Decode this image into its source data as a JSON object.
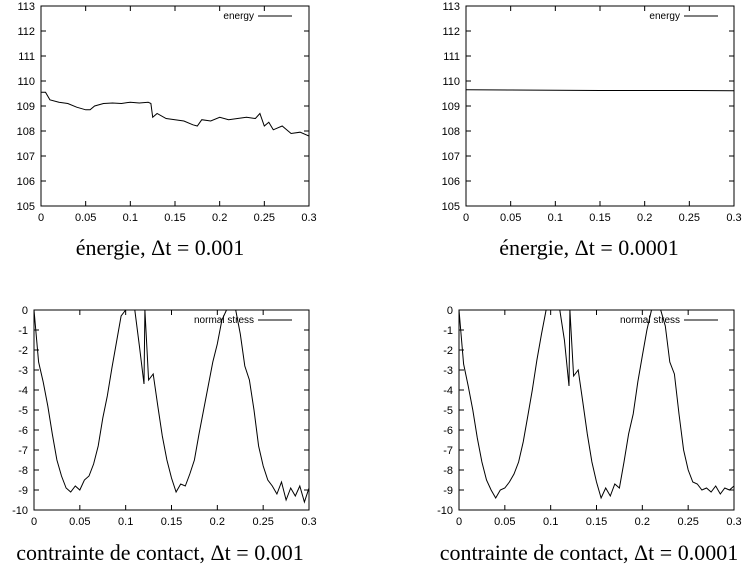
{
  "chart_data": [
    {
      "id": "energy-dt-0.001",
      "type": "line",
      "caption": "énergie, Δt = 0.001",
      "xlim": [
        0,
        0.3
      ],
      "ylim": [
        105,
        113
      ],
      "x_ticks": [
        0,
        0.05,
        0.1,
        0.15,
        0.2,
        0.25,
        0.3
      ],
      "y_ticks": [
        105,
        106,
        107,
        108,
        109,
        110,
        111,
        112,
        113
      ],
      "x_tick_labels": [
        "0",
        "0.05",
        "0.1",
        "0.15",
        "0.2",
        "0.25",
        "0.3"
      ],
      "y_tick_labels": [
        "105",
        "106",
        "107",
        "108",
        "109",
        "110",
        "111",
        "112",
        "113"
      ],
      "grid": false,
      "legend_position": "top-right",
      "series": [
        {
          "name": "energy",
          "x": [
            0,
            0.005,
            0.01,
            0.02,
            0.03,
            0.04,
            0.05,
            0.055,
            0.06,
            0.07,
            0.08,
            0.09,
            0.1,
            0.11,
            0.12,
            0.123,
            0.125,
            0.13,
            0.14,
            0.15,
            0.16,
            0.17,
            0.175,
            0.18,
            0.19,
            0.2,
            0.21,
            0.22,
            0.23,
            0.24,
            0.245,
            0.25,
            0.255,
            0.26,
            0.27,
            0.28,
            0.29,
            0.3
          ],
          "y": [
            109.55,
            109.55,
            109.25,
            109.15,
            109.1,
            108.95,
            108.85,
            108.85,
            109.0,
            109.1,
            109.12,
            109.1,
            109.15,
            109.12,
            109.15,
            109.1,
            108.55,
            108.7,
            108.5,
            108.45,
            108.4,
            108.25,
            108.2,
            108.45,
            108.4,
            108.55,
            108.45,
            108.5,
            108.55,
            108.5,
            108.7,
            108.2,
            108.35,
            108.05,
            108.2,
            107.9,
            107.95,
            107.8
          ]
        }
      ]
    },
    {
      "id": "energy-dt-0.0001",
      "type": "line",
      "caption": "énergie, Δt = 0.0001",
      "xlim": [
        0,
        0.3
      ],
      "ylim": [
        105,
        113
      ],
      "x_ticks": [
        0,
        0.05,
        0.1,
        0.15,
        0.2,
        0.25,
        0.3
      ],
      "y_ticks": [
        105,
        106,
        107,
        108,
        109,
        110,
        111,
        112,
        113
      ],
      "x_tick_labels": [
        "0",
        "0.05",
        "0.1",
        "0.15",
        "0.2",
        "0.25",
        "0.3"
      ],
      "y_tick_labels": [
        "105",
        "106",
        "107",
        "108",
        "109",
        "110",
        "111",
        "112",
        "113"
      ],
      "grid": false,
      "legend_position": "top-right",
      "series": [
        {
          "name": "energy",
          "x": [
            0,
            0.05,
            0.1,
            0.15,
            0.2,
            0.25,
            0.3
          ],
          "y": [
            109.65,
            109.64,
            109.63,
            109.62,
            109.62,
            109.62,
            109.61
          ]
        }
      ]
    },
    {
      "id": "normal-stress-dt-0.001",
      "type": "line",
      "caption": "contrainte de contact, Δt = 0.001",
      "xlim": [
        0,
        0.3
      ],
      "ylim": [
        -10,
        0
      ],
      "x_ticks": [
        0,
        0.05,
        0.1,
        0.15,
        0.2,
        0.25,
        0.3
      ],
      "y_ticks": [
        0,
        -1,
        -2,
        -3,
        -4,
        -5,
        -6,
        -7,
        -8,
        -9,
        -10
      ],
      "x_tick_labels": [
        "0",
        "0.05",
        "0.1",
        "0.15",
        "0.2",
        "0.25",
        "0.3"
      ],
      "y_tick_labels": [
        "0",
        "-1",
        "-2",
        "-3",
        "-4",
        "-5",
        "-6",
        "-7",
        "-8",
        "-9",
        "-10"
      ],
      "grid": false,
      "legend_position": "top-right",
      "series": [
        {
          "name": "normal stress",
          "x": [
            0,
            0.005,
            0.01,
            0.015,
            0.02,
            0.025,
            0.03,
            0.035,
            0.04,
            0.045,
            0.05,
            0.055,
            0.06,
            0.065,
            0.07,
            0.075,
            0.08,
            0.085,
            0.09,
            0.095,
            0.1,
            0.105,
            0.11,
            0.115,
            0.12,
            0.121,
            0.125,
            0.13,
            0.135,
            0.14,
            0.145,
            0.15,
            0.155,
            0.16,
            0.165,
            0.17,
            0.175,
            0.18,
            0.185,
            0.19,
            0.195,
            0.2,
            0.205,
            0.21,
            0.215,
            0.22,
            0.225,
            0.23,
            0.235,
            0.24,
            0.245,
            0.25,
            0.255,
            0.26,
            0.265,
            0.27,
            0.275,
            0.28,
            0.285,
            0.29,
            0.295,
            0.3
          ],
          "y": [
            0,
            -2.6,
            -3.6,
            -4.8,
            -6.2,
            -7.5,
            -8.3,
            -8.9,
            -9.1,
            -8.8,
            -9.0,
            -8.5,
            -8.3,
            -7.7,
            -6.8,
            -5.4,
            -4.3,
            -2.9,
            -1.6,
            -0.3,
            0,
            0,
            0,
            -1.8,
            -3.7,
            0,
            -3.5,
            -3.2,
            -4.8,
            -6.3,
            -7.5,
            -8.4,
            -9.1,
            -8.7,
            -8.8,
            -8.2,
            -7.5,
            -6.2,
            -5.0,
            -3.8,
            -2.6,
            -1.7,
            -0.5,
            0,
            0,
            0,
            -1.2,
            -2.8,
            -3.5,
            -5.0,
            -6.8,
            -7.8,
            -8.5,
            -8.8,
            -9.2,
            -8.6,
            -9.5,
            -8.9,
            -9.3,
            -8.8,
            -9.6,
            -8.9
          ]
        }
      ]
    },
    {
      "id": "normal-stress-dt-0.0001",
      "type": "line",
      "caption": "contrainte de contact, Δt = 0.0001",
      "xlim": [
        0,
        0.3
      ],
      "ylim": [
        -10,
        0
      ],
      "x_ticks": [
        0,
        0.05,
        0.1,
        0.15,
        0.2,
        0.25,
        0.3
      ],
      "y_ticks": [
        0,
        -1,
        -2,
        -3,
        -4,
        -5,
        -6,
        -7,
        -8,
        -9,
        -10
      ],
      "x_tick_labels": [
        "0",
        "0.05",
        "0.1",
        "0.15",
        "0.2",
        "0.25",
        "0.3"
      ],
      "y_tick_labels": [
        "0",
        "-1",
        "-2",
        "-3",
        "-4",
        "-5",
        "-6",
        "-7",
        "-8",
        "-9",
        "-10"
      ],
      "grid": false,
      "legend_position": "top-right",
      "series": [
        {
          "name": "normal stress",
          "x": [
            0,
            0.005,
            0.01,
            0.015,
            0.02,
            0.025,
            0.03,
            0.035,
            0.04,
            0.045,
            0.05,
            0.055,
            0.06,
            0.065,
            0.07,
            0.075,
            0.08,
            0.085,
            0.09,
            0.095,
            0.1,
            0.105,
            0.11,
            0.115,
            0.12,
            0.121,
            0.125,
            0.13,
            0.135,
            0.14,
            0.145,
            0.15,
            0.155,
            0.16,
            0.165,
            0.17,
            0.175,
            0.18,
            0.185,
            0.19,
            0.195,
            0.2,
            0.205,
            0.21,
            0.215,
            0.22,
            0.225,
            0.23,
            0.235,
            0.24,
            0.245,
            0.25,
            0.255,
            0.26,
            0.265,
            0.27,
            0.275,
            0.28,
            0.285,
            0.29,
            0.295,
            0.3
          ],
          "y": [
            0,
            -2.7,
            -3.8,
            -5.0,
            -6.4,
            -7.6,
            -8.5,
            -9.0,
            -9.4,
            -9.0,
            -8.9,
            -8.6,
            -8.2,
            -7.6,
            -6.6,
            -5.3,
            -4.0,
            -2.5,
            -1.2,
            0,
            0,
            0,
            0,
            -1.5,
            -3.8,
            0,
            -3.3,
            -3.0,
            -4.6,
            -6.2,
            -7.6,
            -8.6,
            -9.4,
            -8.9,
            -9.3,
            -8.7,
            -8.9,
            -7.6,
            -6.2,
            -5.2,
            -3.6,
            -2.3,
            -1.0,
            0,
            0,
            0,
            -0.8,
            -2.6,
            -3.2,
            -5.2,
            -7.0,
            -8.0,
            -8.6,
            -8.7,
            -9.0,
            -8.9,
            -9.1,
            -8.8,
            -9.2,
            -8.9,
            -9.0,
            -8.8
          ]
        }
      ]
    }
  ]
}
